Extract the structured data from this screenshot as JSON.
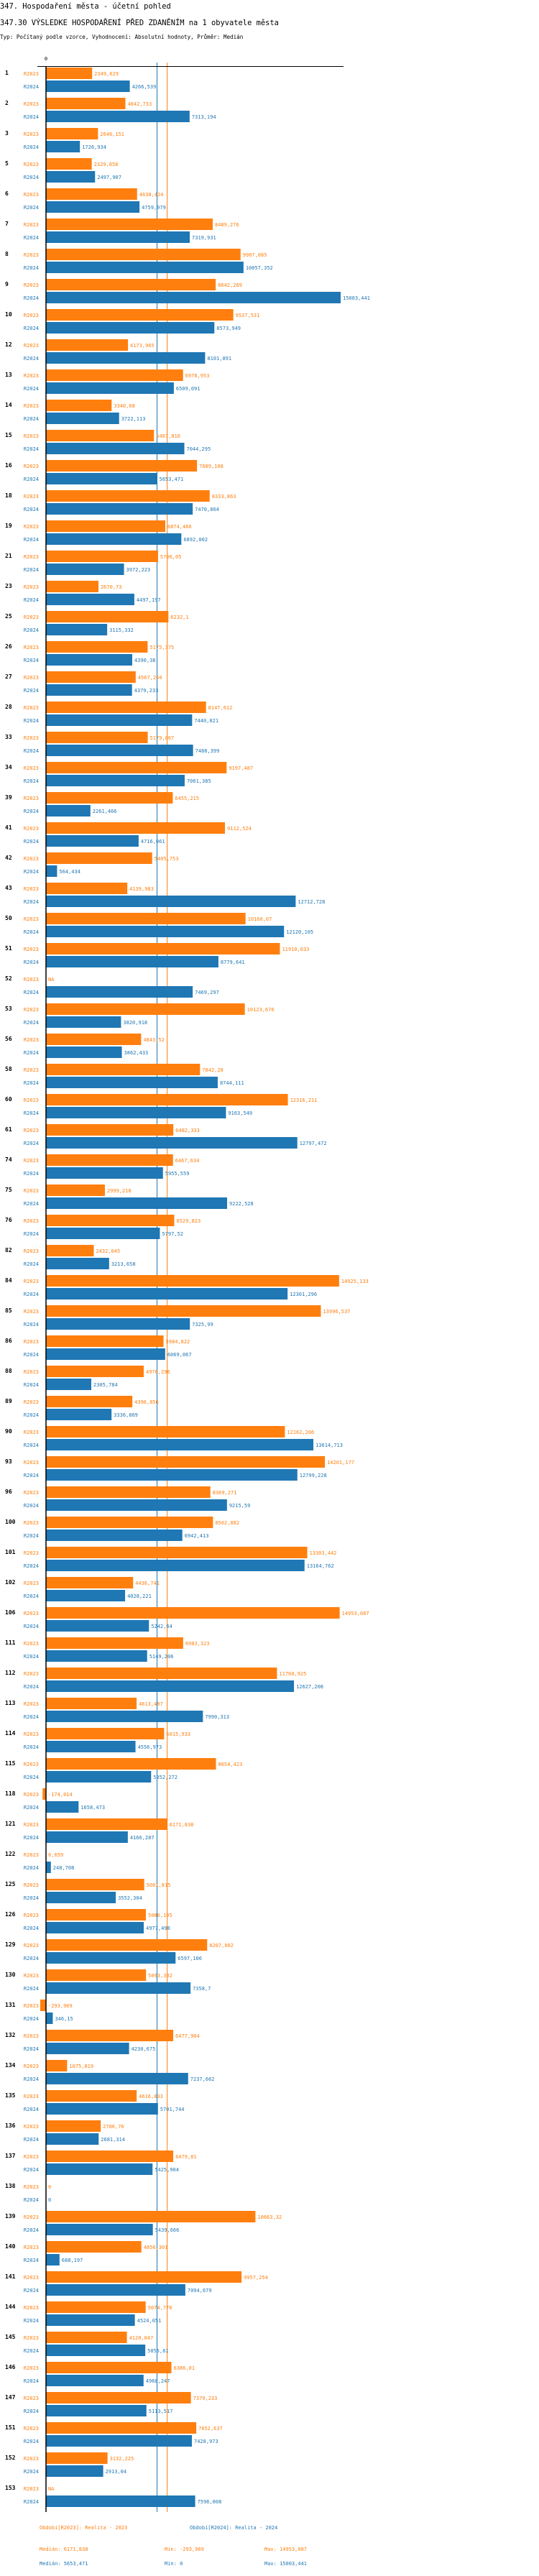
{
  "header": {
    "title": "347. Hospodaření města - účetní pohled",
    "subtitle": "347.30 VÝSLEDKE HOSPODAŘENÍ PŘED ZDANĚNÍM na 1 obyvatele města",
    "info": "Typ: Počítaný podle vzorce, Vyhodnocení: Absolutní hodnoty, Průměr: Medián"
  },
  "colors": {
    "R2023": "#ff7f0e",
    "R2024": "#1f77b4",
    "axis": "#000000"
  },
  "chart_data": {
    "type": "bar",
    "orientation": "horizontal",
    "zero_tick_label": "0",
    "xlim": [
      -293.969,
      15003.441
    ],
    "grid": false,
    "categories": [
      "1",
      "2",
      "3",
      "5",
      "6",
      "7",
      "8",
      "9",
      "10",
      "12",
      "13",
      "14",
      "15",
      "16",
      "18",
      "19",
      "21",
      "23",
      "25",
      "26",
      "27",
      "28",
      "33",
      "34",
      "39",
      "41",
      "42",
      "43",
      "50",
      "51",
      "52",
      "53",
      "56",
      "58",
      "60",
      "61",
      "74",
      "75",
      "76",
      "82",
      "84",
      "85",
      "86",
      "88",
      "89",
      "90",
      "93",
      "96",
      "100",
      "101",
      "102",
      "106",
      "111",
      "112",
      "113",
      "114",
      "115",
      "118",
      "121",
      "122",
      "125",
      "126",
      "129",
      "130",
      "131",
      "132",
      "134",
      "135",
      "136",
      "137",
      "138",
      "139",
      "140",
      "141",
      "144",
      "145",
      "146",
      "147",
      "151",
      "152",
      "153"
    ],
    "series": [
      {
        "name": "R2023",
        "values": [
          2349.629,
          4042.733,
          2646.151,
          2329.858,
          4638.424,
          8489.276,
          9907.085,
          8642.269,
          9537.531,
          4173.965,
          6978.953,
          3340.68,
          5497.816,
          7689.108,
          8333.863,
          6074.466,
          5706.05,
          2670.73,
          6232.1,
          5175.375,
          4567.264,
          8147.612,
          5179.867,
          9197.487,
          6455.215,
          9112.524,
          5405.753,
          4139.983,
          10160.07,
          11910.033,
          null,
          10123.676,
          4843.52,
          7842.28,
          12316.211,
          6482.333,
          6467.634,
          2999.218,
          6529.823,
          2432.045,
          14925.133,
          13996.537,
          5984.822,
          4976.296,
          4396.856,
          12162.206,
          14201.177,
          8369.271,
          8502.882,
          13303.442,
          4436.741,
          14953.087,
          6983.323,
          11760.925,
          4613.497,
          6015.933,
          8654.423,
          -174.014,
          6171.838,
          6.659,
          5001.815,
          5086.195,
          8207.002,
          5093.332,
          -293.969,
          6477.904,
          1075.819,
          4616.833,
          2786.76,
          6479.81,
          0,
          10663.32,
          4856.301,
          9957.254,
          5074.778,
          4120.047,
          6386.01,
          7379.233,
          7652.637,
          3132.225,
          null
        ]
      },
      {
        "name": "R2024",
        "values": [
          4266.539,
          7313.194,
          1726.934,
          2497.907,
          4759.979,
          7319.931,
          10057.352,
          15003.441,
          8573.949,
          8101.891,
          6509.091,
          3722.113,
          7044.295,
          5653.471,
          7470.864,
          6892.002,
          3972.223,
          4497.197,
          3115.332,
          4390.38,
          4379.233,
          7440.821,
          7488.399,
          7061.385,
          2261.466,
          4716.061,
          564.434,
          12712.728,
          12120.105,
          8779.641,
          7469.297,
          3820.918,
          3862.433,
          8744.111,
          9163.549,
          12797.472,
          5955.559,
          9222.528,
          5797.52,
          3213.658,
          12301.296,
          7325.99,
          6069.067,
          2305.784,
          3336.869,
          13614.713,
          12799.228,
          9215.59,
          6942.413,
          13164.762,
          4028.221,
          5242.64,
          5149.206,
          12627.208,
          7990.313,
          4556.973,
          5352.272,
          1658.473,
          4166.287,
          248.708,
          3552.304,
          4977.498,
          6597.106,
          7358.7,
          346.15,
          4230.675,
          7237.662,
          5701.744,
          2681.314,
          5425.904,
          0,
          5439.666,
          688.197,
          7094.679,
          4524.051,
          5055.61,
          4968.247,
          5113.517,
          7428.973,
          2913.04,
          7596.008
        ]
      }
    ],
    "na_label": "NA",
    "medians": {
      "R2023": 6171.838,
      "R2024": 5653.471
    }
  },
  "legend": {
    "r2023": "Období[R2023]: Realita - 2023",
    "r2024": "Období[R2024]: Realita - 2024",
    "r2023_median": "Medián: 6171,838",
    "r2023_min": "Min: -293,969",
    "r2023_max": "Max: 14953,087",
    "r2024_median": "Medián: 5653,471",
    "r2024_min": "Min: 0",
    "r2024_max": "Max: 15003,441"
  }
}
